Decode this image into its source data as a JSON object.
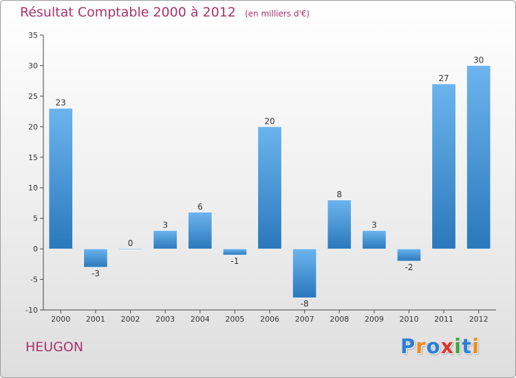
{
  "chart_data": {
    "type": "bar",
    "title": "Résultat Comptable 2000 à 2012",
    "subtitle": "(en milliers d'€)",
    "categories": [
      "2000",
      "2001",
      "2002",
      "2003",
      "2004",
      "2005",
      "2006",
      "2007",
      "2008",
      "2009",
      "2010",
      "2011",
      "2012"
    ],
    "values": [
      23,
      -3,
      0,
      3,
      6,
      -1,
      20,
      -8,
      8,
      3,
      -2,
      27,
      30
    ],
    "ylim": [
      -10,
      35
    ],
    "yticks": [
      -10,
      -5,
      0,
      5,
      10,
      15,
      20,
      25,
      30,
      35
    ],
    "xlabel": "",
    "ylabel": "",
    "grid": false
  },
  "location": {
    "name": "HEUGON"
  },
  "branding": {
    "logo_letters": [
      "P",
      "r",
      "o",
      "x",
      "i",
      "t",
      "i"
    ],
    "logo_colors": [
      "#2b7fd6",
      "#ef8a1c",
      "#2b7fd6",
      "#d93a2f",
      "#3aa63a",
      "#2b7fd6",
      "#ef8a1c"
    ]
  },
  "colors": {
    "accent": "#a8336d",
    "bar_light": "#6cb4ee",
    "bar_dark": "#2a78bb",
    "axis": "#444444",
    "text": "#333333"
  }
}
